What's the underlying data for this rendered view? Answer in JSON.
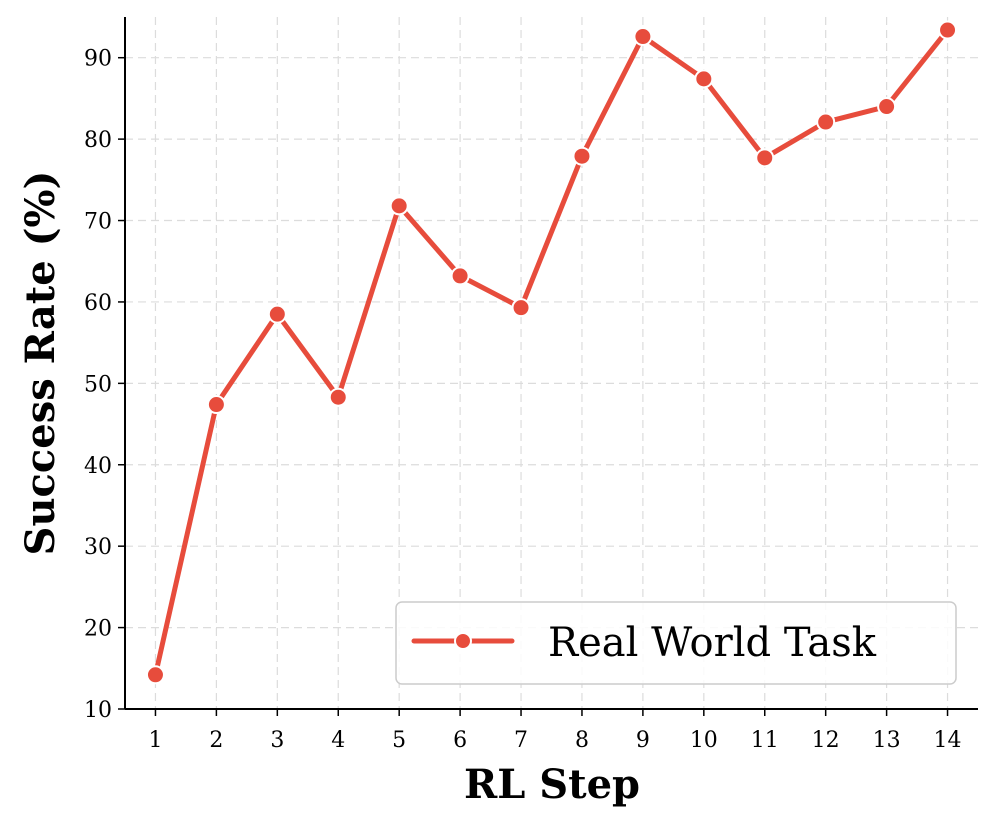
{
  "chart_data": {
    "type": "line",
    "xlabel": "RL Step",
    "ylabel": "Success Rate (%)",
    "x": [
      1,
      2,
      3,
      4,
      5,
      6,
      7,
      8,
      9,
      10,
      11,
      12,
      13,
      14
    ],
    "xticks": [
      "1",
      "2",
      "3",
      "4",
      "5",
      "6",
      "7",
      "8",
      "9",
      "10",
      "11",
      "12",
      "13",
      "14"
    ],
    "yticks": [
      "10",
      "20",
      "30",
      "40",
      "50",
      "60",
      "70",
      "80",
      "90"
    ],
    "ylim": [
      10,
      95
    ],
    "xlim": [
      0.5,
      14.5
    ],
    "grid": true,
    "legend_position": "lower-right",
    "series": [
      {
        "name": "Real World Task",
        "color": "#e74c3c",
        "marker": "circle",
        "values": [
          14.2,
          47.4,
          58.5,
          48.3,
          71.8,
          63.2,
          59.3,
          77.9,
          92.6,
          87.4,
          77.7,
          82.1,
          84.0,
          93.4
        ]
      }
    ]
  }
}
